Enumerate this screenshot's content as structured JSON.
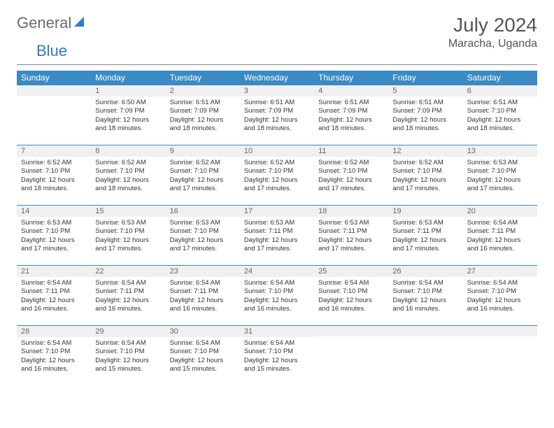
{
  "brand": {
    "name1": "General",
    "name2": "Blue"
  },
  "title": "July 2024",
  "location": "Maracha, Uganda",
  "colors": {
    "header_bg": "#3b8ac4",
    "header_text": "#ffffff",
    "daynum_bg": "#f0f0f0",
    "daynum_border": "#3b8ac4",
    "text": "#333333",
    "brand_gray": "#6b6b6b",
    "brand_blue": "#2a7cc7"
  },
  "typography": {
    "body_fontsize": 9.5,
    "title_fontsize": 28,
    "header_fontsize": 12
  },
  "weekdays": [
    "Sunday",
    "Monday",
    "Tuesday",
    "Wednesday",
    "Thursday",
    "Friday",
    "Saturday"
  ],
  "first_weekday_index": 1,
  "days": [
    {
      "n": 1,
      "sunrise": "6:50 AM",
      "sunset": "7:09 PM",
      "daylight": "12 hours and 18 minutes."
    },
    {
      "n": 2,
      "sunrise": "6:51 AM",
      "sunset": "7:09 PM",
      "daylight": "12 hours and 18 minutes."
    },
    {
      "n": 3,
      "sunrise": "6:51 AM",
      "sunset": "7:09 PM",
      "daylight": "12 hours and 18 minutes."
    },
    {
      "n": 4,
      "sunrise": "6:51 AM",
      "sunset": "7:09 PM",
      "daylight": "12 hours and 18 minutes."
    },
    {
      "n": 5,
      "sunrise": "6:51 AM",
      "sunset": "7:09 PM",
      "daylight": "12 hours and 18 minutes."
    },
    {
      "n": 6,
      "sunrise": "6:51 AM",
      "sunset": "7:10 PM",
      "daylight": "12 hours and 18 minutes."
    },
    {
      "n": 7,
      "sunrise": "6:52 AM",
      "sunset": "7:10 PM",
      "daylight": "12 hours and 18 minutes."
    },
    {
      "n": 8,
      "sunrise": "6:52 AM",
      "sunset": "7:10 PM",
      "daylight": "12 hours and 18 minutes."
    },
    {
      "n": 9,
      "sunrise": "6:52 AM",
      "sunset": "7:10 PM",
      "daylight": "12 hours and 17 minutes."
    },
    {
      "n": 10,
      "sunrise": "6:52 AM",
      "sunset": "7:10 PM",
      "daylight": "12 hours and 17 minutes."
    },
    {
      "n": 11,
      "sunrise": "6:52 AM",
      "sunset": "7:10 PM",
      "daylight": "12 hours and 17 minutes."
    },
    {
      "n": 12,
      "sunrise": "6:52 AM",
      "sunset": "7:10 PM",
      "daylight": "12 hours and 17 minutes."
    },
    {
      "n": 13,
      "sunrise": "6:53 AM",
      "sunset": "7:10 PM",
      "daylight": "12 hours and 17 minutes."
    },
    {
      "n": 14,
      "sunrise": "6:53 AM",
      "sunset": "7:10 PM",
      "daylight": "12 hours and 17 minutes."
    },
    {
      "n": 15,
      "sunrise": "6:53 AM",
      "sunset": "7:10 PM",
      "daylight": "12 hours and 17 minutes."
    },
    {
      "n": 16,
      "sunrise": "6:53 AM",
      "sunset": "7:10 PM",
      "daylight": "12 hours and 17 minutes."
    },
    {
      "n": 17,
      "sunrise": "6:53 AM",
      "sunset": "7:11 PM",
      "daylight": "12 hours and 17 minutes."
    },
    {
      "n": 18,
      "sunrise": "6:53 AM",
      "sunset": "7:11 PM",
      "daylight": "12 hours and 17 minutes."
    },
    {
      "n": 19,
      "sunrise": "6:53 AM",
      "sunset": "7:11 PM",
      "daylight": "12 hours and 17 minutes."
    },
    {
      "n": 20,
      "sunrise": "6:54 AM",
      "sunset": "7:11 PM",
      "daylight": "12 hours and 16 minutes."
    },
    {
      "n": 21,
      "sunrise": "6:54 AM",
      "sunset": "7:11 PM",
      "daylight": "12 hours and 16 minutes."
    },
    {
      "n": 22,
      "sunrise": "6:54 AM",
      "sunset": "7:11 PM",
      "daylight": "12 hours and 16 minutes."
    },
    {
      "n": 23,
      "sunrise": "6:54 AM",
      "sunset": "7:11 PM",
      "daylight": "12 hours and 16 minutes."
    },
    {
      "n": 24,
      "sunrise": "6:54 AM",
      "sunset": "7:10 PM",
      "daylight": "12 hours and 16 minutes."
    },
    {
      "n": 25,
      "sunrise": "6:54 AM",
      "sunset": "7:10 PM",
      "daylight": "12 hours and 16 minutes."
    },
    {
      "n": 26,
      "sunrise": "6:54 AM",
      "sunset": "7:10 PM",
      "daylight": "12 hours and 16 minutes."
    },
    {
      "n": 27,
      "sunrise": "6:54 AM",
      "sunset": "7:10 PM",
      "daylight": "12 hours and 16 minutes."
    },
    {
      "n": 28,
      "sunrise": "6:54 AM",
      "sunset": "7:10 PM",
      "daylight": "12 hours and 16 minutes."
    },
    {
      "n": 29,
      "sunrise": "6:54 AM",
      "sunset": "7:10 PM",
      "daylight": "12 hours and 15 minutes."
    },
    {
      "n": 30,
      "sunrise": "6:54 AM",
      "sunset": "7:10 PM",
      "daylight": "12 hours and 15 minutes."
    },
    {
      "n": 31,
      "sunrise": "6:54 AM",
      "sunset": "7:10 PM",
      "daylight": "12 hours and 15 minutes."
    }
  ],
  "labels": {
    "sunrise": "Sunrise:",
    "sunset": "Sunset:",
    "daylight": "Daylight:"
  }
}
